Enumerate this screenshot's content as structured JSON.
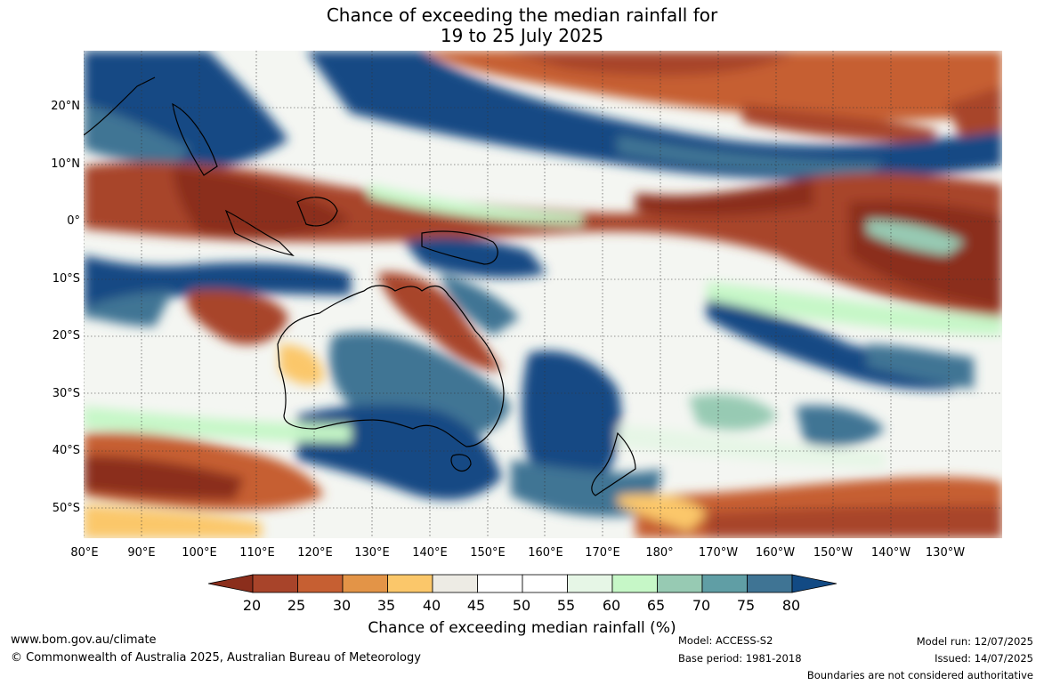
{
  "title_line1": "Chance of exceeding the median rainfall for",
  "title_line2": "19 to 25 July 2025",
  "lat_labels": [
    "20°N",
    "10°N",
    "0°",
    "10°S",
    "20°S",
    "30°S",
    "40°S",
    "50°S"
  ],
  "lon_labels": [
    "80°E",
    "90°E",
    "100°E",
    "110°E",
    "120°E",
    "130°E",
    "140°E",
    "150°E",
    "160°E",
    "170°E",
    "180°",
    "170°W",
    "160°W",
    "150°W",
    "140°W",
    "130°W"
  ],
  "colorbar": {
    "ticks": [
      "20",
      "25",
      "30",
      "35",
      "40",
      "45",
      "50",
      "55",
      "60",
      "65",
      "70",
      "75",
      "80"
    ],
    "label": "Chance of exceeding median rainfall (%)",
    "colors": [
      "#8b2e1c",
      "#a8442a",
      "#c65f32",
      "#e39447",
      "#fbc76a",
      "#edebe4",
      "#ffffff",
      "#ffffff",
      "#e6f6e6",
      "#c6f7c7",
      "#97cab3",
      "#609ea5",
      "#3f7494",
      "#124a84"
    ]
  },
  "footer": {
    "website": "www.bom.gov.au/climate",
    "copyright": "© Commonwealth of Australia 2025, Australian Bureau of Meteorology",
    "model": "Model: ACCESS-S2",
    "base_period": "Base period: 1981-2018",
    "model_run": "Model run: 12/07/2025",
    "issued": "Issued: 14/07/2025",
    "boundaries": "Boundaries are not considered authoritative"
  }
}
